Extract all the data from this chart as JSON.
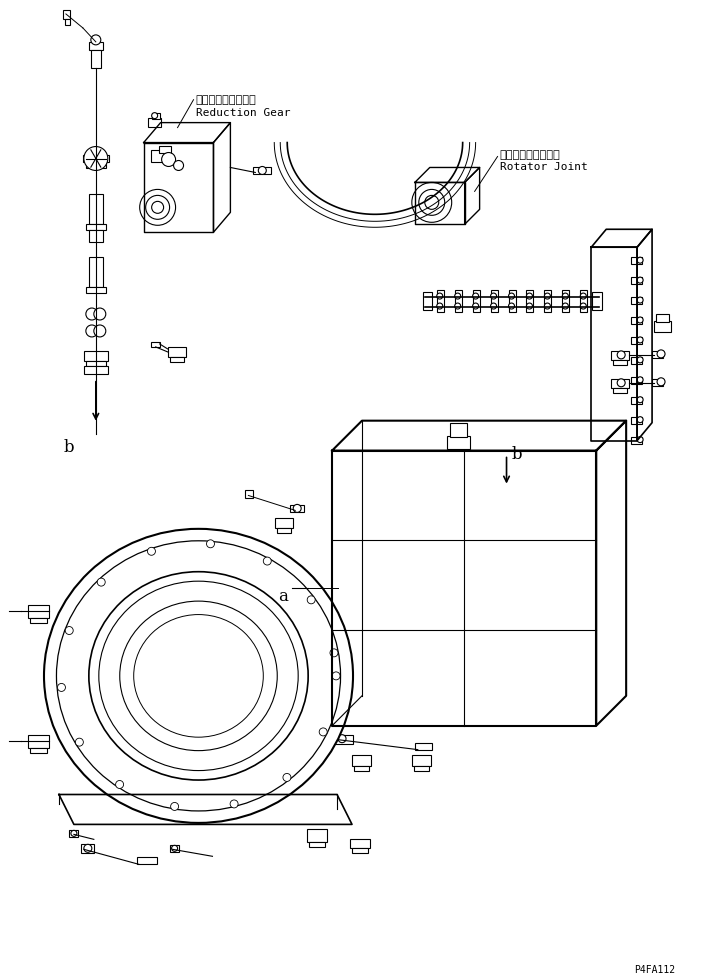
{
  "bg_color": "#ffffff",
  "line_color": "#000000",
  "title_code": "P4FA112",
  "label_reduction_gear_jp": "リダクションギヤー",
  "label_reduction_gear_en": "Reduction Gear",
  "label_rotator_joint_jp": "ロータージョイント",
  "label_rotator_joint_en": "Rotator Joint",
  "label_b1": "b",
  "label_b2": "b",
  "label_a": "a",
  "figsize": [
    7.15,
    9.77
  ],
  "dpi": 100
}
